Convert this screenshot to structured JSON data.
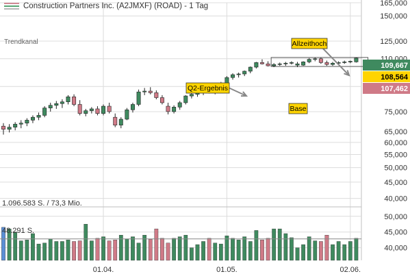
{
  "header": {
    "title": "Construction Partners Inc. (A2JMXF) (ROAD) - 1 Tag",
    "legend_colors": [
      "#d08a96",
      "#58a574",
      "#b8b8b8"
    ]
  },
  "colors": {
    "up": "#3f8a5f",
    "down": "#cf7a87",
    "volume_up": "#3f8a5f",
    "volume_down": "#cf7a87",
    "volume_first": "#5b8fd6",
    "grid": "#dcdcdc",
    "label_box": "#ffd400",
    "price_high_badge": "#3f8a5f",
    "price_mid_badge": "#ffd400",
    "price_low_badge": "#cf7a87"
  },
  "chart_data": {
    "type": "candlestick",
    "scale": "log",
    "ylim": [
      38000,
      165000
    ],
    "yticks": [
      "165,000",
      "150,000",
      "125,000",
      "110,000",
      "90,000",
      "75,000",
      "65,000",
      "60,000",
      "55,000",
      "50,000",
      "45,000",
      "40,000"
    ],
    "xticks": [
      "01.04.",
      "01.05.",
      "02.06."
    ],
    "xtick_index": [
      17,
      38,
      59
    ],
    "indicator_label": "Trendkanal",
    "candles": [
      [
        67500,
        69000,
        63500,
        66000
      ],
      [
        66000,
        68500,
        64500,
        67000
      ],
      [
        67000,
        69500,
        65500,
        68500
      ],
      [
        68500,
        70500,
        66500,
        69000
      ],
      [
        69000,
        71500,
        67500,
        70500
      ],
      [
        70500,
        73000,
        69000,
        72000
      ],
      [
        72000,
        74500,
        70500,
        73000
      ],
      [
        73000,
        78000,
        72000,
        77000
      ],
      [
        77000,
        80000,
        75000,
        78500
      ],
      [
        78500,
        81000,
        76500,
        79500
      ],
      [
        79500,
        82000,
        77000,
        80500
      ],
      [
        80500,
        84500,
        79000,
        83500
      ],
      [
        83500,
        85000,
        78000,
        79000
      ],
      [
        79000,
        81500,
        73000,
        74000
      ],
      [
        74000,
        76500,
        72500,
        75500
      ],
      [
        75500,
        77500,
        74000,
        76500
      ],
      [
        76500,
        78000,
        73000,
        74000
      ],
      [
        74000,
        79000,
        73000,
        78000
      ],
      [
        78000,
        80000,
        74000,
        75000
      ],
      [
        72000,
        74000,
        67000,
        68000
      ],
      [
        68000,
        72000,
        66500,
        71000
      ],
      [
        71000,
        77000,
        70500,
        76000
      ],
      [
        76000,
        80000,
        74500,
        79000
      ],
      [
        79000,
        88000,
        78000,
        86500
      ],
      [
        86500,
        89000,
        84500,
        87000
      ],
      [
        87000,
        89500,
        85000,
        86000
      ],
      [
        86000,
        87500,
        82000,
        83000
      ],
      [
        83000,
        84500,
        79000,
        80000
      ],
      [
        78000,
        80000,
        73500,
        75000
      ],
      [
        75000,
        78500,
        74000,
        77500
      ],
      [
        77500,
        81000,
        76000,
        80000
      ],
      [
        80000,
        84500,
        79000,
        84000
      ],
      [
        84000,
        86000,
        82500,
        85000
      ],
      [
        85000,
        87000,
        83500,
        86000
      ],
      [
        86000,
        88000,
        84500,
        87500
      ],
      [
        87500,
        88500,
        85500,
        86000
      ],
      [
        86000,
        90000,
        85000,
        89000
      ],
      [
        89000,
        93000,
        88000,
        92000
      ],
      [
        92000,
        97000,
        91000,
        96000
      ],
      [
        96000,
        99000,
        94500,
        98000
      ],
      [
        98000,
        99500,
        96000,
        98500
      ],
      [
        98500,
        101000,
        97000,
        100500
      ],
      [
        100500,
        104000,
        99000,
        103500
      ],
      [
        103500,
        107500,
        102500,
        107000
      ],
      [
        107000,
        109500,
        105500,
        106000
      ],
      [
        106000,
        108000,
        104000,
        104500
      ],
      [
        104500,
        106500,
        103500,
        105500
      ],
      [
        105500,
        107000,
        104500,
        106000
      ],
      [
        106000,
        107500,
        104500,
        106500
      ],
      [
        106500,
        108000,
        105500,
        107000
      ],
      [
        105000,
        107500,
        103500,
        106000
      ],
      [
        105000,
        108000,
        104500,
        107500
      ],
      [
        107500,
        110500,
        106500,
        109500
      ],
      [
        109500,
        111000,
        108000,
        110000
      ],
      [
        110000,
        111000,
        106000,
        107000
      ],
      [
        107000,
        108500,
        104500,
        105500
      ],
      [
        105500,
        107500,
        104500,
        106500
      ],
      [
        106500,
        108000,
        105500,
        107000
      ],
      [
        107000,
        108500,
        106000,
        107500
      ],
      [
        107500,
        108500,
        106500,
        108000
      ],
      [
        107500,
        111000,
        107000,
        110500
      ]
    ],
    "volume": {
      "ylim": [
        36000,
        53000
      ],
      "yticks": [
        "50,000",
        "45,000",
        "40,000"
      ],
      "label": "1.096.583 S. / 73,3 Mio.",
      "ref_label": "48.291 S.",
      "ref_value": 42800,
      "values": [
        46500,
        46000,
        45000,
        42200,
        42500,
        44500,
        41200,
        41500,
        42800,
        42000,
        42000,
        42500,
        42000,
        42200,
        47500,
        42200,
        43000,
        43500,
        42200,
        42500,
        44000,
        42800,
        43500,
        41500,
        44000,
        42700,
        46000,
        43000,
        41500,
        43000,
        43500,
        44000,
        40000,
        41000,
        42000,
        43000,
        41500,
        41200,
        43800,
        43000,
        42500,
        43500,
        42000,
        45500,
        42500,
        43000,
        46000,
        46000,
        44500,
        43200,
        40000,
        41000,
        43500,
        42200,
        42000,
        44000,
        41000,
        42000,
        41000,
        42000,
        43000
      ]
    },
    "price_badges": [
      "109,667",
      "108,564",
      "107,462"
    ],
    "price_badge_values": [
      109667,
      108564,
      107462
    ],
    "base_range": [
      104000,
      111000
    ],
    "base_index_range": [
      46,
      62
    ],
    "annotations": [
      {
        "text": "Q2-Ergebnis",
        "index": 44
      },
      {
        "text": "Allzeithoch",
        "index": 62
      },
      {
        "text": "Base",
        "index": 53
      }
    ]
  }
}
